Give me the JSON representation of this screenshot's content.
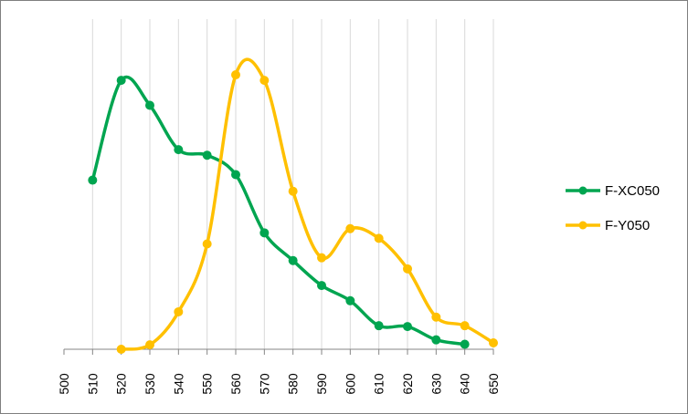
{
  "chart_data": {
    "type": "line",
    "smooth": true,
    "x": [
      500,
      510,
      520,
      530,
      540,
      550,
      560,
      570,
      580,
      590,
      600,
      610,
      620,
      630,
      640,
      650
    ],
    "xticks": [
      "500",
      "510",
      "520",
      "530",
      "540",
      "550",
      "560",
      "570",
      "580",
      "590",
      "600",
      "610",
      "620",
      "630",
      "640",
      "650"
    ],
    "xlim": [
      500,
      650
    ],
    "ylim": [
      0,
      100
    ],
    "y_axis_visible": false,
    "grid": "vertical",
    "legend": "right",
    "series": [
      {
        "name": "F-XC050",
        "color": "#00a550",
        "points": [
          [
            510,
            61
          ],
          [
            520,
            97
          ],
          [
            530,
            88
          ],
          [
            540,
            72
          ],
          [
            550,
            70
          ],
          [
            560,
            63
          ],
          [
            570,
            42
          ],
          [
            580,
            32
          ],
          [
            590,
            23
          ],
          [
            600,
            17.5
          ],
          [
            610,
            8.5
          ],
          [
            620,
            8.2
          ],
          [
            630,
            3.4
          ],
          [
            640,
            1.8
          ]
        ]
      },
      {
        "name": "F-Y050",
        "color": "#ffc000",
        "points": [
          [
            520,
            0
          ],
          [
            530,
            1.6
          ],
          [
            540,
            13.5
          ],
          [
            550,
            38
          ],
          [
            560,
            99
          ],
          [
            570,
            97
          ],
          [
            580,
            57
          ],
          [
            590,
            33
          ],
          [
            600,
            43.5
          ],
          [
            610,
            40
          ],
          [
            620,
            29
          ],
          [
            630,
            11.6
          ],
          [
            640,
            8.5
          ],
          [
            650,
            2.3
          ]
        ]
      }
    ]
  }
}
